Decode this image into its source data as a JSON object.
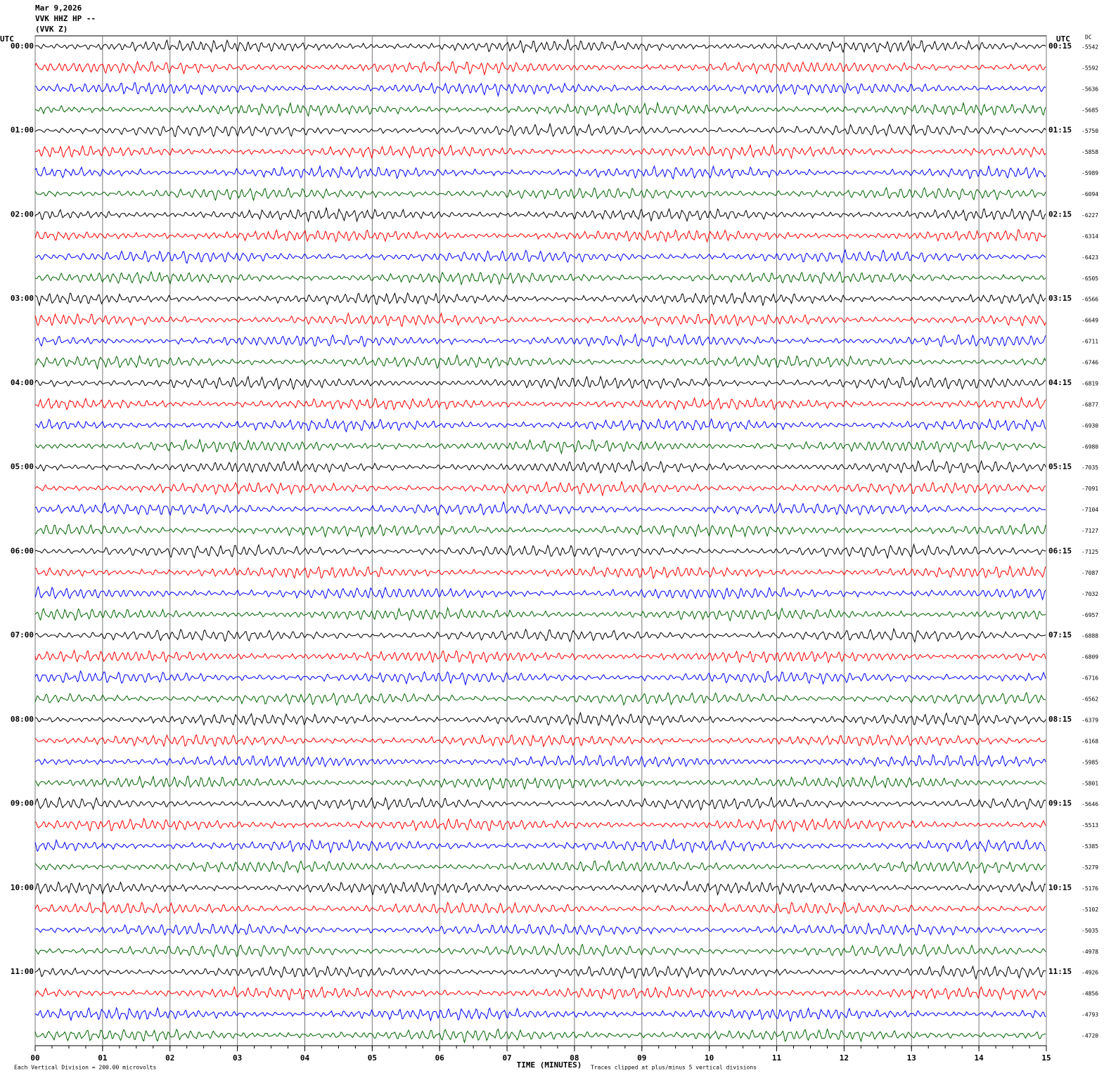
{
  "chart_data": {
    "type": "helicorder",
    "title": "Mar 9,2026",
    "subtitle": [
      "VVK HHZ HP --",
      "(VVK Z)"
    ],
    "left_unit": "UTC",
    "right_unit": "UTC",
    "dc_label": "DC",
    "xlabel": "TIME (MINUTES)",
    "scale_note": "Each Vertical Division =  200.00 microvolts",
    "clip_note": "Traces clipped at plus/minus 5 vertical divisions",
    "xlim": [
      0,
      15
    ],
    "xticks": [
      {
        "value": 0,
        "label": "00"
      },
      {
        "value": 1,
        "label": "01"
      },
      {
        "value": 2,
        "label": "02"
      },
      {
        "value": 3,
        "label": "03"
      },
      {
        "value": 4,
        "label": "04"
      },
      {
        "value": 5,
        "label": "05"
      },
      {
        "value": 6,
        "label": "06"
      },
      {
        "value": 7,
        "label": "07"
      },
      {
        "value": 8,
        "label": "08"
      },
      {
        "value": 9,
        "label": "09"
      },
      {
        "value": 10,
        "label": "10"
      },
      {
        "value": 11,
        "label": "11"
      },
      {
        "value": 12,
        "label": "12"
      },
      {
        "value": 13,
        "label": "13"
      },
      {
        "value": 14,
        "label": "14"
      },
      {
        "value": 15,
        "label": "15"
      }
    ],
    "grid": true,
    "trace_colors": [
      "#000000",
      "#ff0000",
      "#0000ff",
      "#006400"
    ],
    "left_labels": [
      "00:00",
      "01:00",
      "02:00",
      "03:00",
      "04:00",
      "05:00",
      "06:00",
      "07:00",
      "08:00",
      "09:00",
      "10:00",
      "11:00"
    ],
    "right_labels": [
      "00:15",
      "01:15",
      "02:15",
      "03:15",
      "04:15",
      "05:15",
      "06:15",
      "07:15",
      "08:15",
      "09:15",
      "10:15",
      "11:15"
    ],
    "dc_values": [
      -5542,
      -5592,
      -5636,
      -5685,
      -5750,
      -5858,
      -5989,
      -6094,
      -6227,
      -6314,
      -6423,
      -6505,
      -6566,
      -6649,
      -6711,
      -6746,
      -6819,
      -6877,
      -6930,
      -6980,
      -7035,
      -7091,
      -7104,
      -7127,
      -7125,
      -7087,
      -7032,
      -6957,
      -6888,
      -6809,
      -6716,
      -6562,
      -6379,
      -6168,
      -5985,
      -5801,
      -5646,
      -5513,
      -5385,
      -5279,
      -5176,
      -5102,
      -5035,
      -4978,
      -4926,
      -4856,
      -4793,
      -4720
    ]
  }
}
